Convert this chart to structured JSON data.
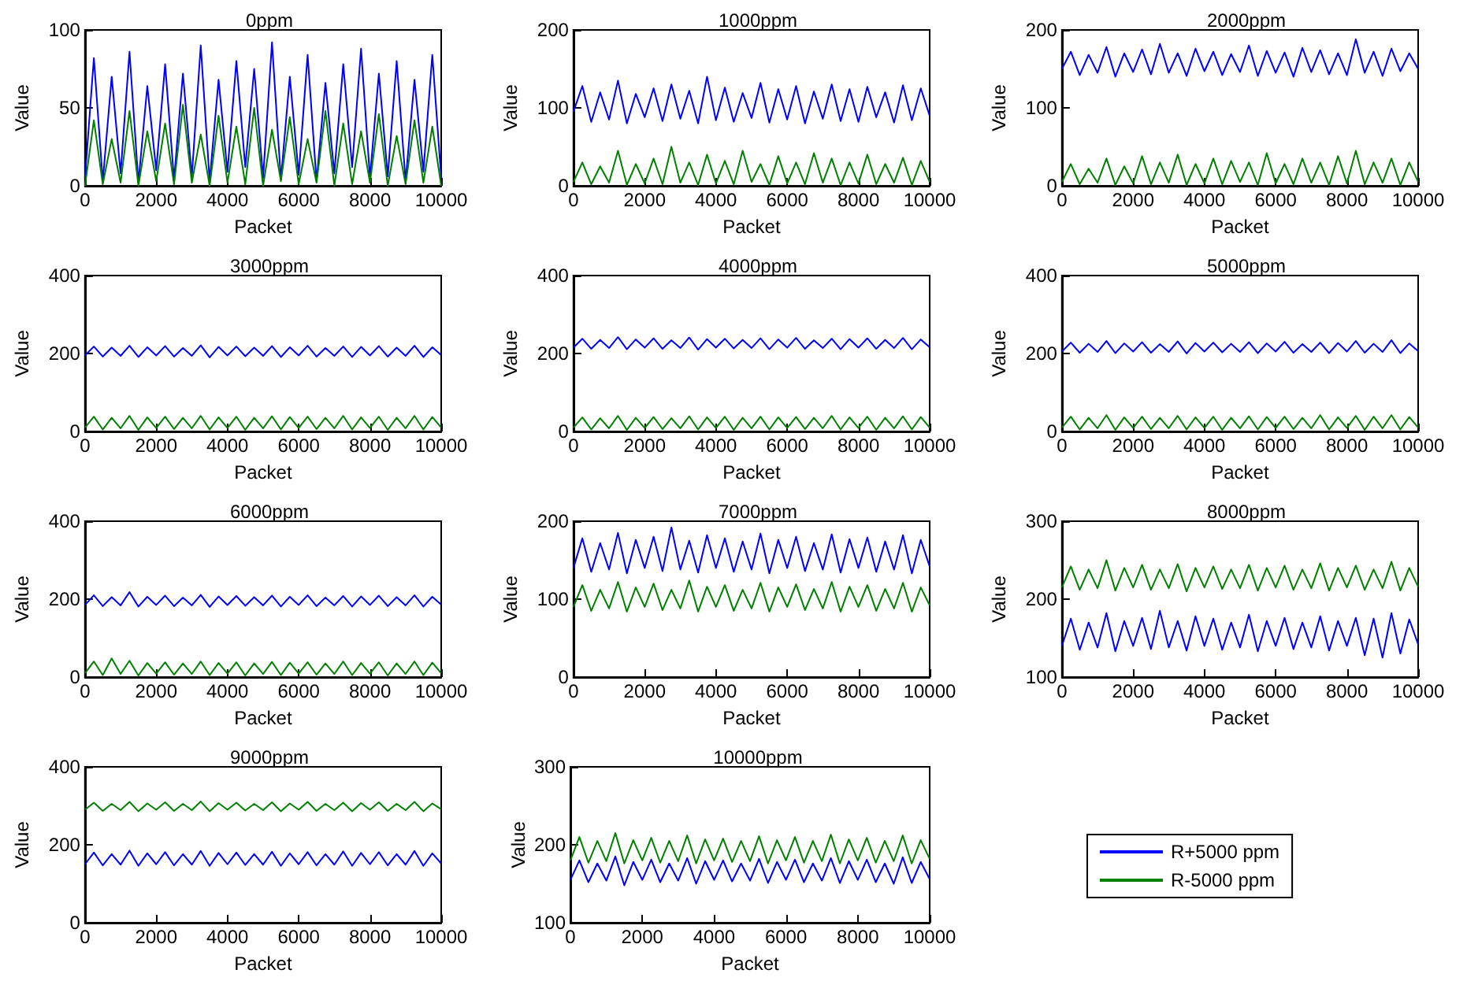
{
  "chart_data": [
    {
      "type": "line",
      "title": "0ppm",
      "xlabel": "Packet",
      "ylabel": "Value",
      "xlim": [
        0,
        10000
      ],
      "xticks": [
        0,
        2000,
        4000,
        6000,
        8000,
        10000
      ],
      "ylim": [
        0,
        100
      ],
      "yticks": [
        0,
        50,
        100
      ],
      "x": [
        0,
        250,
        500,
        750,
        1000,
        1250,
        1500,
        1750,
        2000,
        2250,
        2500,
        2750,
        3000,
        3250,
        3500,
        3750,
        4000,
        4250,
        4500,
        4750,
        5000,
        5250,
        5500,
        5750,
        6000,
        6250,
        6500,
        6750,
        7000,
        7250,
        7500,
        7750,
        8000,
        8250,
        8500,
        8750,
        9000,
        9250,
        9500,
        9750,
        10000
      ],
      "series": [
        {
          "color": "#0000ff",
          "values": [
            5,
            82,
            3,
            70,
            8,
            86,
            2,
            64,
            10,
            78,
            4,
            72,
            6,
            90,
            3,
            68,
            9,
            80,
            12,
            75,
            5,
            92,
            4,
            70,
            7,
            84,
            3,
            66,
            8,
            78,
            12,
            88,
            5,
            72,
            6,
            80,
            3,
            68,
            9,
            84,
            5
          ]
        },
        {
          "color": "#008000",
          "values": [
            0,
            42,
            1,
            30,
            2,
            48,
            0,
            35,
            3,
            40,
            1,
            52,
            2,
            33,
            0,
            45,
            2,
            38,
            1,
            50,
            0,
            36,
            3,
            44,
            1,
            30,
            2,
            48,
            0,
            40,
            1,
            35,
            2,
            46,
            0,
            32,
            1,
            42,
            2,
            38,
            0
          ]
        }
      ]
    },
    {
      "type": "line",
      "title": "1000ppm",
      "xlabel": "Packet",
      "ylabel": "Value",
      "xlim": [
        0,
        10000
      ],
      "xticks": [
        0,
        2000,
        4000,
        6000,
        8000,
        10000
      ],
      "ylim": [
        0,
        200
      ],
      "yticks": [
        0,
        100,
        200
      ],
      "x": [
        0,
        250,
        500,
        750,
        1000,
        1250,
        1500,
        1750,
        2000,
        2250,
        2500,
        2750,
        3000,
        3250,
        3500,
        3750,
        4000,
        4250,
        4500,
        4750,
        5000,
        5250,
        5500,
        5750,
        6000,
        6250,
        6500,
        6750,
        7000,
        7250,
        7500,
        7750,
        8000,
        8250,
        8500,
        8750,
        9000,
        9250,
        9500,
        9750,
        10000
      ],
      "series": [
        {
          "color": "#0000ff",
          "values": [
            95,
            128,
            82,
            120,
            85,
            135,
            80,
            118,
            88,
            125,
            83,
            130,
            86,
            122,
            80,
            140,
            84,
            126,
            82,
            119,
            87,
            132,
            81,
            124,
            85,
            128,
            80,
            121,
            86,
            130,
            83,
            124,
            82,
            127,
            88,
            120,
            81,
            129,
            84,
            125,
            90
          ]
        },
        {
          "color": "#008000",
          "values": [
            5,
            30,
            2,
            25,
            4,
            45,
            1,
            28,
            3,
            35,
            2,
            50,
            4,
            30,
            1,
            40,
            3,
            32,
            2,
            45,
            5,
            28,
            1,
            38,
            3,
            30,
            2,
            42,
            4,
            35,
            1,
            30,
            3,
            40,
            2,
            28,
            4,
            36,
            1,
            32,
            5
          ]
        }
      ]
    },
    {
      "type": "line",
      "title": "2000ppm",
      "xlabel": "Packet",
      "ylabel": "Value",
      "xlim": [
        0,
        10000
      ],
      "xticks": [
        0,
        2000,
        4000,
        6000,
        8000,
        10000
      ],
      "ylim": [
        0,
        200
      ],
      "yticks": [
        0,
        100,
        200
      ],
      "x": [
        0,
        250,
        500,
        750,
        1000,
        1250,
        1500,
        1750,
        2000,
        2250,
        2500,
        2750,
        3000,
        3250,
        3500,
        3750,
        4000,
        4250,
        4500,
        4750,
        5000,
        5250,
        5500,
        5750,
        6000,
        6250,
        6500,
        6750,
        7000,
        7250,
        7500,
        7750,
        8000,
        8250,
        8500,
        8750,
        9000,
        9250,
        9500,
        9750,
        10000
      ],
      "series": [
        {
          "color": "#0000ff",
          "values": [
            150,
            172,
            142,
            168,
            145,
            178,
            140,
            170,
            146,
            175,
            143,
            182,
            145,
            170,
            141,
            176,
            147,
            172,
            142,
            169,
            146,
            180,
            141,
            173,
            145,
            171,
            140,
            177,
            146,
            174,
            143,
            170,
            142,
            188,
            145,
            172,
            141,
            176,
            147,
            170,
            150
          ]
        },
        {
          "color": "#008000",
          "values": [
            5,
            28,
            2,
            22,
            4,
            35,
            1,
            25,
            3,
            38,
            2,
            30,
            4,
            40,
            1,
            28,
            3,
            35,
            2,
            32,
            5,
            30,
            1,
            42,
            3,
            28,
            2,
            35,
            4,
            30,
            1,
            38,
            3,
            45,
            2,
            30,
            4,
            35,
            1,
            30,
            5
          ]
        }
      ]
    },
    {
      "type": "line",
      "title": "3000ppm",
      "xlabel": "Packet",
      "ylabel": "Value",
      "xlim": [
        0,
        10000
      ],
      "xticks": [
        0,
        2000,
        4000,
        6000,
        8000,
        10000
      ],
      "ylim": [
        0,
        400
      ],
      "yticks": [
        0,
        200,
        400
      ],
      "x": [
        0,
        250,
        500,
        750,
        1000,
        1250,
        1500,
        1750,
        2000,
        2250,
        2500,
        2750,
        3000,
        3250,
        3500,
        3750,
        4000,
        4250,
        4500,
        4750,
        5000,
        5250,
        5500,
        5750,
        6000,
        6250,
        6500,
        6750,
        7000,
        7250,
        7500,
        7750,
        8000,
        8250,
        8500,
        8750,
        9000,
        9250,
        9500,
        9750,
        10000
      ],
      "series": [
        {
          "color": "#0000ff",
          "values": [
            195,
            218,
            192,
            215,
            194,
            220,
            191,
            216,
            195,
            219,
            192,
            214,
            194,
            221,
            190,
            217,
            195,
            218,
            193,
            215,
            194,
            219,
            191,
            216,
            195,
            220,
            192,
            214,
            194,
            218,
            191,
            217,
            195,
            219,
            192,
            215,
            194,
            220,
            191,
            216,
            196
          ]
        },
        {
          "color": "#008000",
          "values": [
            10,
            38,
            5,
            35,
            8,
            40,
            4,
            36,
            9,
            38,
            6,
            35,
            8,
            40,
            5,
            36,
            9,
            38,
            4,
            35,
            8,
            39,
            5,
            37,
            9,
            38,
            6,
            35,
            8,
            40,
            5,
            36,
            9,
            38,
            4,
            35,
            8,
            40,
            5,
            37,
            10
          ]
        }
      ]
    },
    {
      "type": "line",
      "title": "4000ppm",
      "xlabel": "Packet",
      "ylabel": "Value",
      "xlim": [
        0,
        10000
      ],
      "xticks": [
        0,
        2000,
        4000,
        6000,
        8000,
        10000
      ],
      "ylim": [
        0,
        400
      ],
      "yticks": [
        0,
        200,
        400
      ],
      "x": [
        0,
        250,
        500,
        750,
        1000,
        1250,
        1500,
        1750,
        2000,
        2250,
        2500,
        2750,
        3000,
        3250,
        3500,
        3750,
        4000,
        4250,
        4500,
        4750,
        5000,
        5250,
        5500,
        5750,
        6000,
        6250,
        6500,
        6750,
        7000,
        7250,
        7500,
        7750,
        8000,
        8250,
        8500,
        8750,
        9000,
        9250,
        9500,
        9750,
        10000
      ],
      "series": [
        {
          "color": "#0000ff",
          "values": [
            215,
            238,
            212,
            235,
            214,
            242,
            211,
            236,
            215,
            239,
            212,
            234,
            214,
            241,
            210,
            237,
            215,
            238,
            213,
            235,
            214,
            239,
            211,
            236,
            215,
            240,
            212,
            234,
            214,
            238,
            211,
            237,
            215,
            239,
            212,
            235,
            214,
            240,
            211,
            236,
            216
          ]
        },
        {
          "color": "#008000",
          "values": [
            10,
            36,
            5,
            34,
            8,
            40,
            4,
            35,
            9,
            37,
            6,
            34,
            8,
            39,
            5,
            36,
            9,
            38,
            4,
            35,
            8,
            38,
            5,
            36,
            9,
            37,
            6,
            35,
            8,
            40,
            5,
            36,
            9,
            38,
            4,
            35,
            8,
            39,
            5,
            37,
            10
          ]
        }
      ]
    },
    {
      "type": "line",
      "title": "5000ppm",
      "xlabel": "Packet",
      "ylabel": "Value",
      "xlim": [
        0,
        10000
      ],
      "xticks": [
        0,
        2000,
        4000,
        6000,
        8000,
        10000
      ],
      "ylim": [
        0,
        400
      ],
      "yticks": [
        0,
        200,
        400
      ],
      "x": [
        0,
        250,
        500,
        750,
        1000,
        1250,
        1500,
        1750,
        2000,
        2250,
        2500,
        2750,
        3000,
        3250,
        3500,
        3750,
        4000,
        4250,
        4500,
        4750,
        5000,
        5250,
        5500,
        5750,
        6000,
        6250,
        6500,
        6750,
        7000,
        7250,
        7500,
        7750,
        8000,
        8250,
        8500,
        8750,
        9000,
        9250,
        9500,
        9750,
        10000
      ],
      "series": [
        {
          "color": "#0000ff",
          "values": [
            205,
            228,
            202,
            225,
            204,
            232,
            201,
            226,
            205,
            229,
            202,
            224,
            204,
            231,
            200,
            227,
            205,
            228,
            203,
            225,
            204,
            229,
            201,
            226,
            205,
            230,
            202,
            224,
            204,
            228,
            201,
            227,
            205,
            232,
            202,
            225,
            204,
            234,
            201,
            226,
            206
          ]
        },
        {
          "color": "#008000",
          "values": [
            10,
            38,
            5,
            35,
            8,
            42,
            4,
            36,
            9,
            38,
            6,
            35,
            8,
            40,
            5,
            36,
            9,
            38,
            4,
            35,
            8,
            39,
            5,
            37,
            9,
            38,
            6,
            35,
            8,
            42,
            5,
            36,
            9,
            40,
            4,
            38,
            8,
            42,
            5,
            37,
            10
          ]
        }
      ]
    },
    {
      "type": "line",
      "title": "6000ppm",
      "xlabel": "Packet",
      "ylabel": "Value",
      "xlim": [
        0,
        10000
      ],
      "xticks": [
        0,
        2000,
        4000,
        6000,
        8000,
        10000
      ],
      "ylim": [
        0,
        400
      ],
      "yticks": [
        0,
        200,
        400
      ],
      "x": [
        0,
        250,
        500,
        750,
        1000,
        1250,
        1500,
        1750,
        2000,
        2250,
        2500,
        2750,
        3000,
        3250,
        3500,
        3750,
        4000,
        4250,
        4500,
        4750,
        5000,
        5250,
        5500,
        5750,
        6000,
        6250,
        6500,
        6750,
        7000,
        7250,
        7500,
        7750,
        8000,
        8250,
        8500,
        8750,
        9000,
        9250,
        9500,
        9750,
        10000
      ],
      "series": [
        {
          "color": "#0000ff",
          "values": [
            185,
            210,
            182,
            205,
            184,
            218,
            181,
            206,
            185,
            209,
            182,
            204,
            184,
            211,
            180,
            207,
            185,
            208,
            183,
            205,
            184,
            209,
            181,
            206,
            185,
            210,
            182,
            204,
            184,
            208,
            181,
            207,
            185,
            209,
            182,
            205,
            184,
            210,
            181,
            206,
            186
          ]
        },
        {
          "color": "#008000",
          "values": [
            10,
            40,
            5,
            48,
            8,
            42,
            4,
            36,
            9,
            38,
            6,
            35,
            8,
            40,
            5,
            36,
            9,
            38,
            4,
            35,
            8,
            39,
            5,
            37,
            9,
            38,
            6,
            35,
            8,
            40,
            5,
            36,
            9,
            38,
            4,
            35,
            8,
            40,
            5,
            37,
            10
          ]
        }
      ]
    },
    {
      "type": "line",
      "title": "7000ppm",
      "xlabel": "Packet",
      "ylabel": "Value",
      "xlim": [
        0,
        10000
      ],
      "xticks": [
        0,
        2000,
        4000,
        6000,
        8000,
        10000
      ],
      "ylim": [
        0,
        200
      ],
      "yticks": [
        0,
        100,
        200
      ],
      "x": [
        0,
        250,
        500,
        750,
        1000,
        1250,
        1500,
        1750,
        2000,
        2250,
        2500,
        2750,
        3000,
        3250,
        3500,
        3750,
        4000,
        4250,
        4500,
        4750,
        5000,
        5250,
        5500,
        5750,
        6000,
        6250,
        6500,
        6750,
        7000,
        7250,
        7500,
        7750,
        8000,
        8250,
        8500,
        8750,
        9000,
        9250,
        9500,
        9750,
        10000
      ],
      "series": [
        {
          "color": "#0000ff",
          "values": [
            140,
            178,
            135,
            172,
            138,
            185,
            133,
            176,
            140,
            180,
            136,
            192,
            138,
            175,
            134,
            182,
            140,
            178,
            135,
            174,
            138,
            184,
            133,
            176,
            140,
            180,
            136,
            172,
            138,
            183,
            134,
            177,
            140,
            179,
            135,
            174,
            138,
            182,
            133,
            176,
            142
          ]
        },
        {
          "color": "#008000",
          "values": [
            90,
            118,
            85,
            112,
            88,
            122,
            84,
            115,
            90,
            120,
            86,
            112,
            88,
            124,
            84,
            116,
            90,
            118,
            85,
            112,
            88,
            121,
            84,
            115,
            90,
            119,
            86,
            113,
            88,
            122,
            84,
            116,
            90,
            118,
            85,
            113,
            88,
            121,
            84,
            115,
            92
          ]
        }
      ]
    },
    {
      "type": "line",
      "title": "8000ppm",
      "xlabel": "Packet",
      "ylabel": "Value",
      "xlim": [
        0,
        10000
      ],
      "xticks": [
        0,
        2000,
        4000,
        6000,
        8000,
        10000
      ],
      "ylim": [
        100,
        300
      ],
      "yticks": [
        100,
        200,
        300
      ],
      "x": [
        0,
        250,
        500,
        750,
        1000,
        1250,
        1500,
        1750,
        2000,
        2250,
        2500,
        2750,
        3000,
        3250,
        3500,
        3750,
        4000,
        4250,
        4500,
        4750,
        5000,
        5250,
        5500,
        5750,
        6000,
        6250,
        6500,
        6750,
        7000,
        7250,
        7500,
        7750,
        8000,
        8250,
        8500,
        8750,
        9000,
        9250,
        9500,
        9750,
        10000
      ],
      "series": [
        {
          "color": "#0000ff",
          "values": [
            140,
            175,
            135,
            170,
            138,
            182,
            133,
            172,
            140,
            176,
            136,
            185,
            138,
            172,
            134,
            178,
            140,
            175,
            135,
            170,
            138,
            180,
            133,
            172,
            140,
            176,
            136,
            170,
            138,
            178,
            134,
            172,
            140,
            176,
            128,
            175,
            125,
            182,
            130,
            174,
            142
          ]
        },
        {
          "color": "#008000",
          "values": [
            215,
            242,
            212,
            238,
            214,
            250,
            211,
            240,
            215,
            244,
            212,
            238,
            214,
            245,
            210,
            240,
            215,
            242,
            213,
            238,
            214,
            244,
            211,
            240,
            215,
            243,
            212,
            238,
            214,
            246,
            211,
            240,
            215,
            243,
            212,
            238,
            214,
            248,
            211,
            240,
            216
          ]
        }
      ]
    },
    {
      "type": "line",
      "title": "9000ppm",
      "xlabel": "Packet",
      "ylabel": "Value",
      "xlim": [
        0,
        10000
      ],
      "xticks": [
        0,
        2000,
        4000,
        6000,
        8000,
        10000
      ],
      "ylim": [
        0,
        400
      ],
      "yticks": [
        0,
        200,
        400
      ],
      "x": [
        0,
        250,
        500,
        750,
        1000,
        1250,
        1500,
        1750,
        2000,
        2250,
        2500,
        2750,
        3000,
        3250,
        3500,
        3750,
        4000,
        4250,
        4500,
        4750,
        5000,
        5250,
        5500,
        5750,
        6000,
        6250,
        6500,
        6750,
        7000,
        7250,
        7500,
        7750,
        8000,
        8250,
        8500,
        8750,
        9000,
        9250,
        9500,
        9750,
        10000
      ],
      "series": [
        {
          "color": "#0000ff",
          "values": [
            150,
            180,
            147,
            176,
            149,
            185,
            146,
            178,
            150,
            181,
            147,
            176,
            149,
            184,
            146,
            179,
            150,
            180,
            148,
            176,
            149,
            182,
            146,
            178,
            150,
            181,
            147,
            176,
            149,
            183,
            146,
            179,
            150,
            181,
            147,
            176,
            149,
            184,
            146,
            178,
            152
          ]
        },
        {
          "color": "#008000",
          "values": [
            290,
            308,
            287,
            305,
            289,
            310,
            286,
            306,
            290,
            309,
            287,
            305,
            289,
            311,
            286,
            307,
            290,
            308,
            288,
            305,
            289,
            309,
            286,
            306,
            290,
            310,
            287,
            305,
            289,
            308,
            286,
            307,
            290,
            309,
            287,
            305,
            289,
            310,
            286,
            306,
            291
          ]
        }
      ]
    },
    {
      "type": "line",
      "title": "10000ppm",
      "xlabel": "Packet",
      "ylabel": "Value",
      "xlim": [
        0,
        10000
      ],
      "xticks": [
        0,
        2000,
        4000,
        6000,
        8000,
        10000
      ],
      "ylim": [
        100,
        300
      ],
      "yticks": [
        100,
        200,
        300
      ],
      "legend": "right",
      "x": [
        0,
        250,
        500,
        750,
        1000,
        1250,
        1500,
        1750,
        2000,
        2250,
        2500,
        2750,
        3000,
        3250,
        3500,
        3750,
        4000,
        4250,
        4500,
        4750,
        5000,
        5250,
        5500,
        5750,
        6000,
        6250,
        6500,
        6750,
        7000,
        7250,
        7500,
        7750,
        8000,
        8250,
        8500,
        8750,
        9000,
        9250,
        9500,
        9750,
        10000
      ],
      "series": [
        {
          "name": "R+5000 ppm",
          "color": "#0000ff",
          "values": [
            155,
            180,
            152,
            176,
            154,
            185,
            148,
            178,
            155,
            181,
            152,
            176,
            154,
            183,
            150,
            179,
            155,
            180,
            153,
            176,
            154,
            182,
            151,
            178,
            155,
            181,
            152,
            176,
            154,
            183,
            151,
            179,
            155,
            181,
            152,
            176,
            150,
            184,
            151,
            178,
            156
          ]
        },
        {
          "name": "R-5000 ppm",
          "color": "#008000",
          "values": [
            180,
            210,
            177,
            205,
            179,
            215,
            176,
            206,
            180,
            209,
            177,
            205,
            179,
            212,
            176,
            207,
            180,
            208,
            178,
            205,
            179,
            211,
            176,
            206,
            180,
            210,
            177,
            205,
            179,
            213,
            176,
            207,
            180,
            209,
            177,
            205,
            179,
            212,
            176,
            206,
            182
          ]
        }
      ]
    }
  ]
}
